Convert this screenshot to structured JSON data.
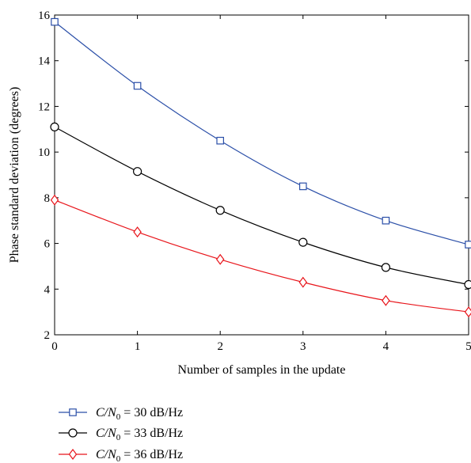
{
  "chart_data": {
    "type": "line",
    "xlabel": "Number of samples in the update",
    "ylabel": "Phase standard deviation (degrees)",
    "xlim": [
      0,
      5
    ],
    "ylim": [
      2,
      16
    ],
    "xticks": [
      "0",
      "1",
      "2",
      "3",
      "4",
      "5"
    ],
    "yticks": [
      "2",
      "4",
      "6",
      "8",
      "10",
      "12",
      "14",
      "16"
    ],
    "grid": false,
    "legend_position": "below",
    "x": [
      0,
      1,
      2,
      3,
      4,
      5
    ],
    "series": [
      {
        "name": "C/N0 = 30 dB/Hz",
        "label_main": "C/N",
        "label_sub": "0",
        "label_rest": " = 30 dB/Hz",
        "color": "#2b4fa8",
        "marker": "square",
        "values": [
          15.7,
          12.9,
          10.5,
          8.5,
          7.0,
          5.95
        ]
      },
      {
        "name": "C/N0 = 33 dB/Hz",
        "label_main": "C/N",
        "label_sub": "0",
        "label_rest": " = 33 dB/Hz",
        "color": "#000000",
        "marker": "circle",
        "values": [
          11.1,
          9.15,
          7.45,
          6.05,
          4.95,
          4.2
        ]
      },
      {
        "name": "C/N0 = 36 dB/Hz",
        "label_main": "C/N",
        "label_sub": "0",
        "label_rest": " = 36 dB/Hz",
        "color": "#e8151b",
        "marker": "diamond",
        "values": [
          7.9,
          6.5,
          5.3,
          4.3,
          3.5,
          3.0
        ]
      }
    ]
  }
}
